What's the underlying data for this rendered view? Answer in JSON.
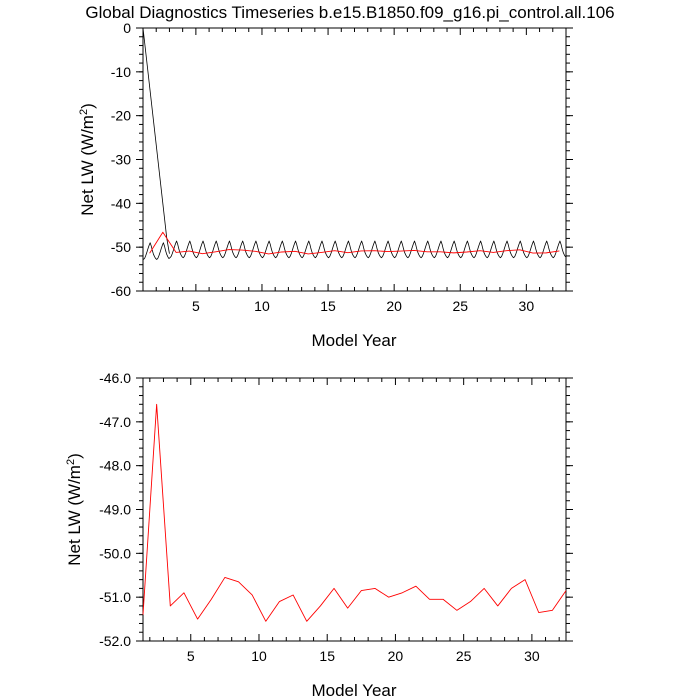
{
  "title": "Global Diagnostics Timeseries b.e15.B1850.f09_g16.pi_control.all.106",
  "colors": {
    "monthly": "#000000",
    "annual": "#ff0000",
    "background": "#ffffff"
  },
  "chart_data": [
    {
      "type": "line",
      "xlabel": "Model Year",
      "ylabel_main": "Net LW (W/m",
      "ylabel_sup": "2",
      "ylabel_close": ")",
      "xlim": [
        1,
        33
      ],
      "ylim": [
        -60,
        0
      ],
      "xticks": [
        5,
        10,
        15,
        20,
        25,
        30
      ],
      "xtick_labels": [
        "5",
        "10",
        "15",
        "20",
        "25",
        "30"
      ],
      "yticks": [
        0,
        -10,
        -20,
        -30,
        -40,
        -50,
        -60
      ],
      "ytick_labels": [
        "0",
        "-10",
        "-20",
        "-30",
        "-40",
        "-50",
        "-60"
      ],
      "grid": false,
      "series": [
        {
          "style": "monthly",
          "color": "#000000",
          "x": [
            1.0,
            2.8,
            3.0
          ],
          "y": [
            0,
            -48,
            -51.5
          ]
        },
        {
          "style": "monthly",
          "color": "#000000",
          "x": [
            1.04,
            1.13,
            1.21,
            1.29,
            1.38,
            1.46,
            1.54,
            1.63,
            1.71,
            1.79,
            1.88,
            1.96,
            2.04,
            2.13,
            2.21,
            2.29,
            2.38,
            2.46,
            2.54,
            2.63,
            2.71,
            2.79,
            2.88,
            2.96,
            3.04,
            3.13,
            3.21,
            3.29,
            3.38,
            3.46,
            3.54,
            3.63,
            3.71,
            3.79,
            3.88,
            3.96,
            4.04,
            4.13,
            4.21,
            4.29,
            4.38,
            4.46,
            4.54,
            4.63,
            4.71,
            4.79,
            4.88,
            4.96,
            5.04,
            5.13,
            5.21,
            5.29,
            5.38,
            5.46,
            5.54,
            5.63,
            5.71,
            5.79,
            5.88,
            5.96,
            6.04,
            6.13,
            6.21,
            6.29,
            6.38,
            6.46,
            6.54,
            6.63,
            6.71,
            6.79,
            6.88,
            6.96,
            7.04,
            7.13,
            7.21,
            7.29,
            7.38,
            7.46,
            7.54,
            7.63,
            7.71,
            7.79,
            7.88,
            7.96,
            8.04,
            8.13,
            8.21,
            8.29,
            8.38,
            8.46,
            8.54,
            8.63,
            8.71,
            8.79,
            8.88,
            8.96,
            9.04,
            9.13,
            9.21,
            9.29,
            9.38,
            9.46,
            9.54,
            9.63,
            9.71,
            9.79,
            9.88,
            9.96,
            10.04,
            10.13,
            10.21,
            10.29,
            10.38,
            10.46,
            10.54,
            10.63,
            10.71,
            10.79,
            10.88,
            10.96,
            11.04,
            11.13,
            11.21,
            11.29,
            11.38,
            11.46,
            11.54,
            11.63,
            11.71,
            11.79,
            11.88,
            11.96,
            12.04,
            12.13,
            12.21,
            12.29,
            12.38,
            12.46,
            12.54,
            12.63,
            12.71,
            12.79,
            12.88,
            12.96,
            13.04,
            13.13,
            13.21,
            13.29,
            13.38,
            13.46,
            13.54,
            13.63,
            13.71,
            13.79,
            13.88,
            13.96,
            14.04,
            14.13,
            14.21,
            14.29,
            14.38,
            14.46,
            14.54,
            14.63,
            14.71,
            14.79,
            14.88,
            14.96,
            15.04,
            15.13,
            15.21,
            15.29,
            15.38,
            15.46,
            15.54,
            15.63,
            15.71,
            15.79,
            15.88,
            15.96,
            16.04,
            16.13,
            16.21,
            16.29,
            16.38,
            16.46,
            16.54,
            16.63,
            16.71,
            16.79,
            16.88,
            16.96,
            17.04,
            17.13,
            17.21,
            17.29,
            17.38,
            17.46,
            17.54,
            17.63,
            17.71,
            17.79,
            17.88,
            17.96,
            18.04,
            18.13,
            18.21,
            18.29,
            18.38,
            18.46,
            18.54,
            18.63,
            18.71,
            18.79,
            18.88,
            18.96,
            19.04,
            19.13,
            19.21,
            19.29,
            19.38,
            19.46,
            19.54,
            19.63,
            19.71,
            19.79,
            19.88,
            19.96,
            20.04,
            20.13,
            20.21,
            20.29,
            20.38,
            20.46,
            20.54,
            20.63,
            20.71,
            20.79,
            20.88,
            20.96,
            21.04,
            21.13,
            21.21,
            21.29,
            21.38,
            21.46,
            21.54,
            21.63,
            21.71,
            21.79,
            21.88,
            21.96,
            22.04,
            22.13,
            22.21,
            22.29,
            22.38,
            22.46,
            22.54,
            22.63,
            22.71,
            22.79,
            22.88,
            22.96,
            23.04,
            23.13,
            23.21,
            23.29,
            23.38,
            23.46,
            23.54,
            23.63,
            23.71,
            23.79,
            23.88,
            23.96,
            24.04,
            24.13,
            24.21,
            24.29,
            24.38,
            24.46,
            24.54,
            24.63,
            24.71,
            24.79,
            24.88,
            24.96,
            25.04,
            25.13,
            25.21,
            25.29,
            25.38,
            25.46,
            25.54,
            25.63,
            25.71,
            25.79,
            25.88,
            25.96,
            26.04,
            26.13,
            26.21,
            26.29,
            26.38,
            26.46,
            26.54,
            26.63,
            26.71,
            26.79,
            26.88,
            26.96,
            27.04,
            27.13,
            27.21,
            27.29,
            27.38,
            27.46,
            27.54,
            27.63,
            27.71,
            27.79,
            27.88,
            27.96,
            28.04,
            28.13,
            28.21,
            28.29,
            28.38,
            28.46,
            28.54,
            28.63,
            28.71,
            28.79,
            28.88,
            28.96,
            29.04,
            29.13,
            29.21,
            29.29,
            29.38,
            29.46,
            29.54,
            29.63,
            29.71,
            29.79,
            29.88,
            29.96,
            30.04,
            30.13,
            30.21,
            30.29,
            30.38,
            30.46,
            30.54,
            30.63,
            30.71,
            30.79,
            30.88,
            30.96,
            31.04,
            31.13,
            31.21,
            31.29,
            31.38,
            31.46,
            31.54,
            31.63,
            31.71,
            31.79,
            31.88,
            31.96,
            32.04,
            32.13,
            32.21,
            32.29,
            32.38,
            32.46,
            32.54,
            32.63,
            32.71,
            32.79,
            32.88,
            32.96
          ],
          "y": [
            -52.8,
            -52.5,
            -51.9,
            -51.2,
            -50.3,
            -49.6,
            -49.0,
            -49.8,
            -50.8,
            -51.6,
            -52.2,
            -52.6,
            -52.8,
            -52.5,
            -51.9,
            -51.2,
            -50.3,
            -49.6,
            -49.0,
            -49.8,
            -50.8,
            -51.6,
            -52.2,
            -52.6,
            -52.4,
            -52.1,
            -51.5,
            -50.8,
            -49.9,
            -49.2,
            -48.6,
            -49.4,
            -50.4,
            -51.2,
            -51.8,
            -52.2,
            -52.4,
            -52.1,
            -51.5,
            -50.8,
            -49.9,
            -49.2,
            -48.6,
            -49.4,
            -50.4,
            -51.2,
            -51.8,
            -52.2,
            -52.4,
            -52.1,
            -51.5,
            -50.8,
            -49.9,
            -49.2,
            -48.6,
            -49.4,
            -50.4,
            -51.2,
            -51.8,
            -52.2,
            -52.4,
            -52.1,
            -51.5,
            -50.8,
            -49.9,
            -49.2,
            -48.6,
            -49.4,
            -50.4,
            -51.2,
            -51.8,
            -52.2,
            -52.4,
            -52.1,
            -51.5,
            -50.8,
            -49.9,
            -49.2,
            -48.6,
            -49.4,
            -50.4,
            -51.2,
            -51.8,
            -52.2,
            -52.4,
            -52.1,
            -51.5,
            -50.8,
            -49.9,
            -49.2,
            -48.6,
            -49.4,
            -50.4,
            -51.2,
            -51.8,
            -52.2,
            -52.4,
            -52.1,
            -51.5,
            -50.8,
            -49.9,
            -49.2,
            -48.6,
            -49.4,
            -50.4,
            -51.2,
            -51.8,
            -52.2,
            -52.4,
            -52.1,
            -51.5,
            -50.8,
            -49.9,
            -49.2,
            -48.6,
            -49.4,
            -50.4,
            -51.2,
            -51.8,
            -52.2,
            -52.4,
            -52.1,
            -51.5,
            -50.8,
            -49.9,
            -49.2,
            -48.6,
            -49.4,
            -50.4,
            -51.2,
            -51.8,
            -52.2,
            -52.4,
            -52.1,
            -51.5,
            -50.8,
            -49.9,
            -49.2,
            -48.6,
            -49.4,
            -50.4,
            -51.2,
            -51.8,
            -52.2,
            -52.4,
            -52.1,
            -51.5,
            -50.8,
            -49.9,
            -49.2,
            -48.6,
            -49.4,
            -50.4,
            -51.2,
            -51.8,
            -52.2,
            -52.4,
            -52.1,
            -51.5,
            -50.8,
            -49.9,
            -49.2,
            -48.6,
            -49.4,
            -50.4,
            -51.2,
            -51.8,
            -52.2,
            -52.4,
            -52.1,
            -51.5,
            -50.8,
            -49.9,
            -49.2,
            -48.6,
            -49.4,
            -50.4,
            -51.2,
            -51.8,
            -52.2,
            -52.4,
            -52.1,
            -51.5,
            -50.8,
            -49.9,
            -49.2,
            -48.6,
            -49.4,
            -50.4,
            -51.2,
            -51.8,
            -52.2,
            -52.4,
            -52.1,
            -51.5,
            -50.8,
            -49.9,
            -49.2,
            -48.6,
            -49.4,
            -50.4,
            -51.2,
            -51.8,
            -52.2,
            -52.4,
            -52.1,
            -51.5,
            -50.8,
            -49.9,
            -49.2,
            -48.6,
            -49.4,
            -50.4,
            -51.2,
            -51.8,
            -52.2,
            -52.4,
            -52.1,
            -51.5,
            -50.8,
            -49.9,
            -49.2,
            -48.6,
            -49.4,
            -50.4,
            -51.2,
            -51.8,
            -52.2,
            -52.4,
            -52.1,
            -51.5,
            -50.8,
            -49.9,
            -49.2,
            -48.6,
            -49.4,
            -50.4,
            -51.2,
            -51.8,
            -52.2,
            -52.4,
            -52.1,
            -51.5,
            -50.8,
            -49.9,
            -49.2,
            -48.6,
            -49.4,
            -50.4,
            -51.2,
            -51.8,
            -52.2,
            -52.4,
            -52.1,
            -51.5,
            -50.8,
            -49.9,
            -49.2,
            -48.6,
            -49.4,
            -50.4,
            -51.2,
            -51.8,
            -52.2,
            -52.4,
            -52.1,
            -51.5,
            -50.8,
            -49.9,
            -49.2,
            -48.6,
            -49.4,
            -50.4,
            -51.2,
            -51.8,
            -52.2,
            -52.4,
            -52.1,
            -51.5,
            -50.8,
            -49.9,
            -49.2,
            -48.6,
            -49.4,
            -50.4,
            -51.2,
            -51.8,
            -52.2,
            -52.4,
            -52.1,
            -51.5,
            -50.8,
            -49.9,
            -49.2,
            -48.6,
            -49.4,
            -50.4,
            -51.2,
            -51.8,
            -52.2,
            -52.4,
            -52.1,
            -51.5,
            -50.8,
            -49.9,
            -49.2,
            -48.6,
            -49.4,
            -50.4,
            -51.2,
            -51.8,
            -52.2,
            -52.4,
            -52.1,
            -51.5,
            -50.8,
            -49.9,
            -49.2,
            -48.6,
            -49.4,
            -50.4,
            -51.2,
            -51.8,
            -52.2,
            -52.4,
            -52.1,
            -51.5,
            -50.8,
            -49.9,
            -49.2,
            -48.6,
            -49.4,
            -50.4,
            -51.2,
            -51.8,
            -52.2,
            -52.4,
            -52.1,
            -51.5,
            -50.8,
            -49.9,
            -49.2,
            -48.6,
            -49.4,
            -50.4,
            -51.2,
            -51.8,
            -52.2,
            -52.4,
            -52.1,
            -51.5,
            -50.8,
            -49.9,
            -49.2,
            -48.6,
            -49.4,
            -50.4,
            -51.2,
            -51.8,
            -52.2,
            -52.4,
            -52.1,
            -51.5,
            -50.8,
            -49.9,
            -49.2,
            -48.6,
            -49.4,
            -50.4,
            -51.2,
            -51.8,
            -52.2,
            -52.4,
            -52.1,
            -51.5,
            -50.8,
            -49.9,
            -49.2,
            -48.6,
            -49.4,
            -50.4,
            -51.2,
            -51.8,
            -52.2
          ]
        },
        {
          "style": "annual",
          "color": "#ff0000",
          "x": [
            1.5,
            2.5,
            3.5,
            4.5,
            5.5,
            6.5,
            7.5,
            8.5,
            9.5,
            10.5,
            11.5,
            12.5,
            13.5,
            14.5,
            15.5,
            16.5,
            17.5,
            18.5,
            19.5,
            20.5,
            21.5,
            22.5,
            23.5,
            24.5,
            25.5,
            26.5,
            27.5,
            28.5,
            29.5,
            30.5,
            31.5,
            32.5
          ],
          "y": [
            -51.4,
            -46.6,
            -51.2,
            -50.9,
            -51.5,
            -51.05,
            -50.55,
            -50.65,
            -50.95,
            -51.55,
            -51.1,
            -50.95,
            -51.55,
            -51.2,
            -50.8,
            -51.25,
            -50.85,
            -50.8,
            -51.0,
            -50.9,
            -50.75,
            -51.05,
            -51.05,
            -51.3,
            -51.1,
            -50.8,
            -51.2,
            -50.8,
            -50.6,
            -51.35,
            -51.3,
            -50.85
          ]
        }
      ]
    },
    {
      "type": "line",
      "xlabel": "Model Year",
      "ylabel_main": "Net LW (W/m",
      "ylabel_sup": "2",
      "ylabel_close": ")",
      "xlim": [
        1.5,
        32.5
      ],
      "ylim": [
        -52.0,
        -46.0
      ],
      "xticks": [
        5,
        10,
        15,
        20,
        25,
        30
      ],
      "xtick_labels": [
        "5",
        "10",
        "15",
        "20",
        "25",
        "30"
      ],
      "yticks": [
        -46,
        -47,
        -48,
        -49,
        -50,
        -51,
        -52
      ],
      "ytick_labels": [
        "-46.0",
        "-47.0",
        "-48.0",
        "-49.0",
        "-50.0",
        "-51.0",
        "-52.0"
      ],
      "grid": false,
      "series": [
        {
          "style": "annual",
          "color": "#ff0000",
          "x": [
            1.5,
            2.5,
            3.5,
            4.5,
            5.5,
            6.5,
            7.5,
            8.5,
            9.5,
            10.5,
            11.5,
            12.5,
            13.5,
            14.5,
            15.5,
            16.5,
            17.5,
            18.5,
            19.5,
            20.5,
            21.5,
            22.5,
            23.5,
            24.5,
            25.5,
            26.5,
            27.5,
            28.5,
            29.5,
            30.5,
            31.5,
            32.5
          ],
          "y": [
            -51.4,
            -46.6,
            -51.2,
            -50.9,
            -51.5,
            -51.05,
            -50.55,
            -50.65,
            -50.95,
            -51.55,
            -51.1,
            -50.95,
            -51.55,
            -51.2,
            -50.8,
            -51.25,
            -50.85,
            -50.8,
            -51.0,
            -50.9,
            -50.75,
            -51.05,
            -51.05,
            -51.3,
            -51.1,
            -50.8,
            -51.2,
            -50.8,
            -50.6,
            -51.35,
            -51.3,
            -50.85
          ]
        }
      ]
    }
  ]
}
